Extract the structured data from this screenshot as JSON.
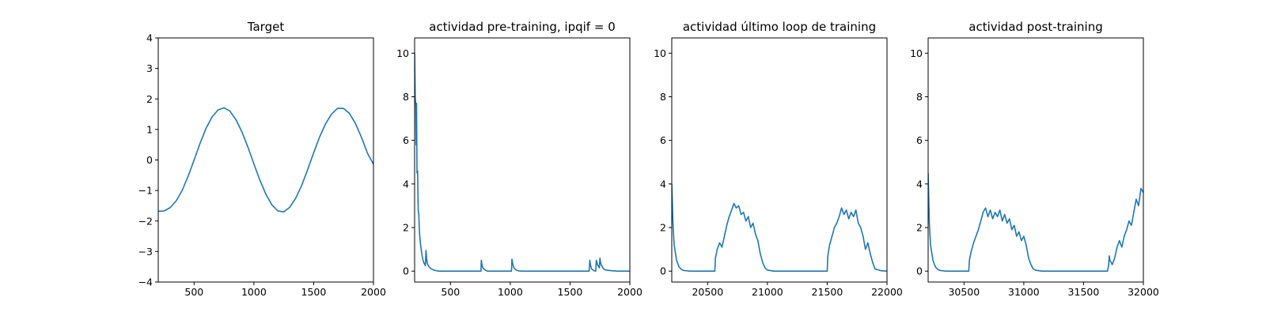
{
  "chart_data": [
    {
      "type": "line",
      "title": "Target",
      "xlabel": "",
      "ylabel": "",
      "xlim": [
        200,
        2000
      ],
      "ylim": [
        -4,
        4
      ],
      "xticks": [
        500,
        1000,
        1500,
        2000
      ],
      "yticks": [
        -4,
        -3,
        -2,
        -1,
        0,
        1,
        2,
        3,
        4
      ],
      "series_color": "#1f77b4",
      "series": [
        {
          "x": [
            200,
            250,
            300,
            350,
            400,
            450,
            500,
            550,
            600,
            650,
            700,
            750,
            800,
            850,
            900,
            950,
            1000,
            1050,
            1100,
            1150,
            1200,
            1250,
            1300,
            1350,
            1400,
            1450,
            1500,
            1550,
            1600,
            1650,
            1700,
            1750,
            1800,
            1850,
            1900,
            1950,
            2000
          ],
          "y": [
            -1.68,
            -1.67,
            -1.56,
            -1.34,
            -1.0,
            -0.53,
            0.0,
            0.55,
            1.04,
            1.41,
            1.64,
            1.71,
            1.6,
            1.32,
            0.92,
            0.42,
            -0.13,
            -0.66,
            -1.12,
            -1.47,
            -1.67,
            -1.7,
            -1.55,
            -1.25,
            -0.83,
            -0.31,
            0.24,
            0.76,
            1.19,
            1.51,
            1.69,
            1.69,
            1.52,
            1.19,
            0.74,
            0.22,
            -0.14
          ]
        }
      ]
    },
    {
      "type": "line",
      "title": "actividad pre-training, ipqif = 0",
      "xlabel": "",
      "ylabel": "",
      "xlim": [
        200,
        2000
      ],
      "ylim": [
        -0.5,
        10.7
      ],
      "xticks": [
        500,
        1000,
        1500,
        2000
      ],
      "yticks": [
        0,
        2,
        4,
        6,
        8,
        10
      ],
      "series_color": "#1f77b4",
      "series": [
        {
          "x": [
            200,
            205,
            210,
            213,
            216,
            220,
            225,
            230,
            235,
            240,
            250,
            260,
            270,
            280,
            290,
            295,
            300,
            305,
            310,
            320,
            340,
            360,
            380,
            400,
            450,
            500,
            600,
            700,
            755,
            758,
            762,
            770,
            790,
            810,
            1000,
            1010,
            1014,
            1020,
            1030,
            1050,
            1070,
            1100,
            1300,
            1500,
            1660,
            1665,
            1670,
            1680,
            1700,
            1715,
            1720,
            1730,
            1745,
            1750,
            1755,
            1760,
            1770,
            1780,
            1800,
            1850,
            1900,
            1950,
            2000
          ],
          "y": [
            10.0,
            8.0,
            7.6,
            5.8,
            7.7,
            4.5,
            4.6,
            2.8,
            2.6,
            1.8,
            1.2,
            0.8,
            0.5,
            0.35,
            0.25,
            0.95,
            0.6,
            0.4,
            0.3,
            0.2,
            0.1,
            0.05,
            0.02,
            0.0,
            0.0,
            0.0,
            0.0,
            0.0,
            0.0,
            0.5,
            0.35,
            0.15,
            0.05,
            0.0,
            0.0,
            0.0,
            0.55,
            0.35,
            0.15,
            0.05,
            0.01,
            0.0,
            0.0,
            0.0,
            0.0,
            0.5,
            0.3,
            0.1,
            0.02,
            0.0,
            0.5,
            0.3,
            0.15,
            0.6,
            0.4,
            0.3,
            0.2,
            0.1,
            0.05,
            0.02,
            0.0,
            0.0,
            0.0
          ]
        }
      ]
    },
    {
      "type": "line",
      "title": "actividad último loop de training",
      "xlabel": "",
      "ylabel": "",
      "xlim": [
        20200,
        22000
      ],
      "ylim": [
        -0.5,
        10.7
      ],
      "xticks": [
        20500,
        21000,
        21500,
        22000
      ],
      "yticks": [
        0,
        2,
        4,
        6,
        8,
        10
      ],
      "series_color": "#1f77b4",
      "series": [
        {
          "x": [
            20200,
            20210,
            20220,
            20240,
            20260,
            20280,
            20300,
            20350,
            20400,
            20500,
            20560,
            20565,
            20580,
            20600,
            20620,
            20640,
            20660,
            20680,
            20700,
            20720,
            20740,
            20760,
            20780,
            20800,
            20820,
            20840,
            20860,
            20880,
            20900,
            20920,
            20940,
            20960,
            20980,
            21000,
            21050,
            21100,
            21200,
            21300,
            21400,
            21500,
            21505,
            21520,
            21540,
            21560,
            21580,
            21600,
            21620,
            21640,
            21660,
            21680,
            21700,
            21720,
            21740,
            21760,
            21780,
            21800,
            21820,
            21840,
            21860,
            21880,
            21900,
            21950,
            22000
          ],
          "y": [
            4.0,
            2.2,
            1.2,
            0.5,
            0.2,
            0.08,
            0.03,
            0.0,
            0.0,
            0.0,
            0.0,
            0.6,
            1.0,
            1.3,
            1.1,
            1.6,
            2.1,
            2.5,
            2.8,
            3.1,
            2.9,
            3.0,
            2.6,
            2.7,
            2.3,
            2.5,
            2.0,
            2.2,
            1.7,
            1.4,
            0.8,
            0.4,
            0.15,
            0.05,
            0.0,
            0.0,
            0.0,
            0.0,
            0.0,
            0.0,
            0.7,
            1.2,
            1.6,
            2.0,
            2.2,
            2.5,
            2.9,
            2.6,
            2.8,
            2.4,
            2.7,
            2.5,
            2.8,
            2.2,
            2.0,
            1.6,
            1.0,
            1.3,
            0.8,
            0.4,
            0.1,
            0.02,
            0.0
          ]
        }
      ]
    },
    {
      "type": "line",
      "title": "actividad post-training",
      "xlabel": "",
      "ylabel": "",
      "xlim": [
        30200,
        32000
      ],
      "ylim": [
        -0.5,
        10.7
      ],
      "xticks": [
        30500,
        31000,
        31500,
        32000
      ],
      "yticks": [
        0,
        2,
        4,
        6,
        8,
        10
      ],
      "series_color": "#1f77b4",
      "series": [
        {
          "x": [
            30200,
            30210,
            30220,
            30240,
            30260,
            30280,
            30300,
            30350,
            30400,
            30500,
            30540,
            30545,
            30560,
            30580,
            30600,
            30620,
            30640,
            30660,
            30680,
            30700,
            30720,
            30740,
            30760,
            30780,
            30800,
            30820,
            30840,
            30860,
            30880,
            30900,
            30920,
            30940,
            30960,
            30980,
            31000,
            31020,
            31040,
            31060,
            31080,
            31100,
            31150,
            31200,
            31300,
            31400,
            31500,
            31600,
            31700,
            31710,
            31715,
            31720,
            31740,
            31760,
            31780,
            31800,
            31820,
            31840,
            31860,
            31880,
            31900,
            31920,
            31940,
            31960,
            31980,
            32000
          ],
          "y": [
            4.5,
            2.2,
            1.2,
            0.5,
            0.2,
            0.08,
            0.03,
            0.0,
            0.0,
            0.0,
            0.0,
            0.5,
            0.9,
            1.3,
            1.6,
            1.9,
            2.3,
            2.7,
            2.9,
            2.5,
            2.8,
            2.4,
            2.7,
            2.5,
            2.8,
            2.3,
            2.6,
            2.2,
            2.4,
            1.9,
            2.1,
            1.6,
            1.8,
            1.4,
            1.6,
            1.2,
            0.6,
            0.3,
            0.1,
            0.04,
            0.0,
            0.0,
            0.0,
            0.0,
            0.0,
            0.0,
            0.0,
            0.3,
            0.7,
            0.5,
            0.3,
            0.6,
            1.1,
            1.4,
            1.1,
            1.6,
            1.9,
            2.3,
            2.1,
            2.7,
            3.3,
            3.0,
            3.8,
            3.6
          ]
        }
      ]
    }
  ]
}
